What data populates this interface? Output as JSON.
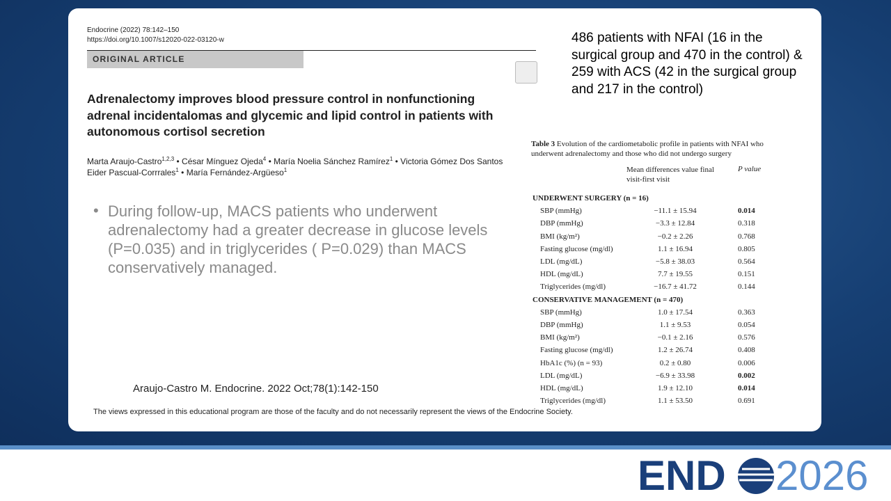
{
  "paper": {
    "journal": "Endocrine (2022) 78:142–150",
    "doi": "https://doi.org/10.1007/s12020-022-03120-w",
    "section": "ORIGINAL ARTICLE",
    "title": "Adrenalectomy improves blood pressure control in nonfunctioning adrenal incidentalomas and glycemic and lipid control in patients with autonomous cortisol secretion",
    "authors_line1": [
      {
        "name": "Marta Araujo-Castro",
        "sup": "1,2,3"
      },
      {
        "name": "César Mínguez Ojeda",
        "sup": "4"
      },
      {
        "name": "María Noelia Sánchez Ramírez",
        "sup": "1"
      },
      {
        "name": "Victoria Gómez Dos Santos",
        "sup": ""
      }
    ],
    "authors_line2": [
      {
        "name": "Eider Pascual-Corrrales",
        "sup": "1"
      },
      {
        "name": "María Fernández-Argüeso",
        "sup": "1"
      }
    ]
  },
  "summary": "486 patients with NFAI (16 in the surgical group and 470 in the control) & 259 with ACS (42 in the surgical group and 217 in the control)",
  "bullet": "During follow-up, MACS patients who underwent adrenalectomy had a greater decrease in glucose levels (P=0.035) and in triglycerides ( P=0.029) than MACS conservatively managed.",
  "citation": "Araujo-Castro M. Endocrine. 2022 Oct;78(1):142-150",
  "disclaimer": "The views expressed in this educational program are those of the faculty and do not necessarily represent the views of the Endocrine Society.",
  "table": {
    "label": "Table 3",
    "caption": "Evolution of the cardiometabolic profile in patients with NFAI who underwent adrenalectomy and those who did not undergo surgery",
    "headers": [
      "Mean differences value final visit-first visit",
      "P value"
    ],
    "sections": [
      {
        "title": "UNDERWENT SURGERY (n = 16)",
        "rows": [
          {
            "label": "SBP (mmHg)",
            "value": "−11.1 ± 15.94",
            "p": "0.014",
            "bold": true
          },
          {
            "label": "DBP (mmHg)",
            "value": "−3.3 ± 12.84",
            "p": "0.318",
            "bold": false
          },
          {
            "label": "BMI (kg/m²)",
            "value": "−0.2 ± 2.26",
            "p": "0.768",
            "bold": false
          },
          {
            "label": "Fasting glucose (mg/dl)",
            "value": "1.1 ± 16.94",
            "p": "0.805",
            "bold": false
          },
          {
            "label": "LDL (mg/dL)",
            "value": "−5.8 ± 38.03",
            "p": "0.564",
            "bold": false
          },
          {
            "label": "HDL (mg/dL)",
            "value": "7.7 ± 19.55",
            "p": "0.151",
            "bold": false
          },
          {
            "label": "Triglycerides (mg/dl)",
            "value": "−16.7 ± 41.72",
            "p": "0.144",
            "bold": false
          }
        ]
      },
      {
        "title": "CONSERVATIVE MANAGEMENT (n = 470)",
        "rows": [
          {
            "label": "SBP (mmHg)",
            "value": "1.0 ± 17.54",
            "p": "0.363",
            "bold": false
          },
          {
            "label": "DBP (mmHg)",
            "value": "1.1 ± 9.53",
            "p": "0.054",
            "bold": false
          },
          {
            "label": "BMI (kg/m²)",
            "value": "−0.1 ± 2.16",
            "p": "0.576",
            "bold": false
          },
          {
            "label": "Fasting glucose (mg/dl)",
            "value": "1.2 ± 26.74",
            "p": "0.408",
            "bold": false
          },
          {
            "label": "HbA1c (%) (n = 93)",
            "value": "0.2 ± 0.80",
            "p": "0.006",
            "bold": false
          },
          {
            "label": "LDL (mg/dL)",
            "value": "−6.9 ± 33.98",
            "p": "0.002",
            "bold": true
          },
          {
            "label": "HDL (mg/dL)",
            "value": "1.9 ± 12.10",
            "p": "0.014",
            "bold": true
          },
          {
            "label": "Triglycerides (mg/dl)",
            "value": "1.1 ± 53.50",
            "p": "0.691",
            "bold": false
          }
        ]
      }
    ]
  },
  "logo": {
    "brand": "END",
    "year": "2026"
  }
}
